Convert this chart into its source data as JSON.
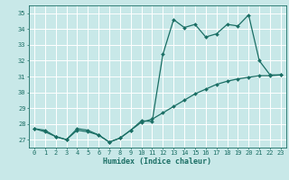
{
  "xlabel": "Humidex (Indice chaleur)",
  "xlim": [
    -0.5,
    23.5
  ],
  "ylim": [
    26.5,
    35.5
  ],
  "yticks": [
    27,
    28,
    29,
    30,
    31,
    32,
    33,
    34,
    35
  ],
  "xticks": [
    0,
    1,
    2,
    3,
    4,
    5,
    6,
    7,
    8,
    9,
    10,
    11,
    12,
    13,
    14,
    15,
    16,
    17,
    18,
    19,
    20,
    21,
    22,
    23
  ],
  "background_color": "#c8e8e8",
  "grid_color": "#ffffff",
  "line_color": "#1a6e64",
  "line1_x": [
    0,
    1,
    2,
    3,
    4,
    5,
    6,
    7,
    8,
    9,
    10,
    11,
    12,
    13,
    14,
    15,
    16,
    17,
    18,
    19,
    20,
    21,
    22,
    23
  ],
  "line1_y": [
    27.7,
    27.6,
    27.2,
    27.0,
    27.7,
    27.6,
    27.3,
    26.85,
    27.1,
    27.6,
    28.2,
    28.15,
    32.4,
    34.6,
    34.1,
    34.3,
    33.5,
    33.7,
    34.3,
    34.2,
    34.9,
    32.0,
    31.1,
    31.1
  ],
  "line2_x": [
    0,
    1,
    2,
    3,
    4,
    5,
    6,
    7,
    8,
    9,
    10,
    11,
    12,
    13,
    14,
    15,
    16,
    17,
    18,
    19,
    20,
    21,
    22,
    23
  ],
  "line2_y": [
    27.7,
    27.5,
    27.2,
    27.0,
    27.6,
    27.5,
    27.3,
    26.85,
    27.1,
    27.6,
    28.1,
    28.3,
    28.7,
    29.1,
    29.5,
    29.9,
    30.2,
    30.5,
    30.7,
    30.85,
    30.95,
    31.05,
    31.05,
    31.1
  ],
  "markersize": 2.0,
  "linewidth": 0.9,
  "axis_fontsize": 6.0,
  "tick_fontsize": 5.0
}
